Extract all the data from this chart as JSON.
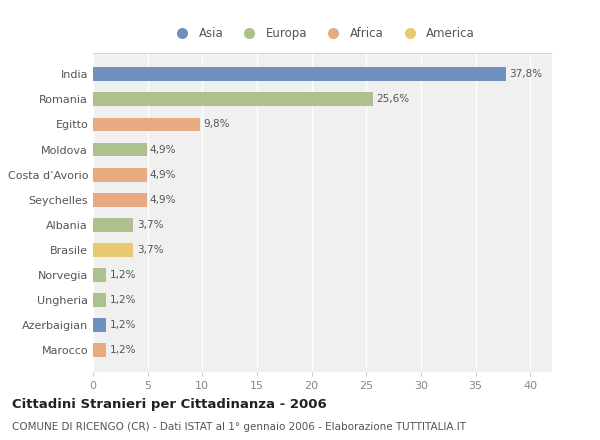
{
  "categories": [
    "India",
    "Romania",
    "Egitto",
    "Moldova",
    "Costa d’Avorio",
    "Seychelles",
    "Albania",
    "Brasile",
    "Norvegia",
    "Ungheria",
    "Azerbaigian",
    "Marocco"
  ],
  "values": [
    37.8,
    25.6,
    9.8,
    4.9,
    4.9,
    4.9,
    3.7,
    3.7,
    1.2,
    1.2,
    1.2,
    1.2
  ],
  "labels": [
    "37,8%",
    "25,6%",
    "9,8%",
    "4,9%",
    "4,9%",
    "4,9%",
    "3,7%",
    "3,7%",
    "1,2%",
    "1,2%",
    "1,2%",
    "1,2%"
  ],
  "colors": [
    "#7090be",
    "#adc08e",
    "#e8aa80",
    "#adc08e",
    "#e8aa80",
    "#e8aa80",
    "#adc08e",
    "#e8c870",
    "#adc08e",
    "#adc08e",
    "#7090be",
    "#e8aa80"
  ],
  "legend_labels": [
    "Asia",
    "Europa",
    "Africa",
    "America"
  ],
  "legend_colors": [
    "#7090be",
    "#adc08e",
    "#e8aa80",
    "#e8c870"
  ],
  "title": "Cittadini Stranieri per Cittadinanza - 2006",
  "subtitle": "COMUNE DI RICENGO (CR) - Dati ISTAT al 1° gennaio 2006 - Elaborazione TUTTITALIA.IT",
  "xlim": [
    0,
    42
  ],
  "xlim_display": 40,
  "xticks": [
    0,
    5,
    10,
    15,
    20,
    25,
    30,
    35,
    40
  ],
  "bg_color": "#ffffff",
  "plot_bg": "#f5f5f5",
  "bar_height": 0.55
}
